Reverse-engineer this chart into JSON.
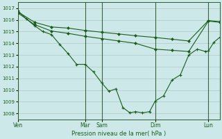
{
  "background_color": "#cce8e8",
  "grid_color": "#b0c8c8",
  "line_color": "#1a5c1a",
  "marker_color": "#1a5c1a",
  "xlabel": "Pression niveau de la mer( hPa )",
  "ylim": [
    1007.5,
    1017.5
  ],
  "yticks": [
    1008,
    1009,
    1010,
    1011,
    1012,
    1013,
    1014,
    1015,
    1016,
    1017
  ],
  "day_labels": [
    "Ven",
    "Mar",
    "Sam",
    "Dim",
    "Lun"
  ],
  "day_x": [
    0,
    96,
    120,
    196,
    272
  ],
  "total_width": 288,
  "series_flat1_x": [
    0,
    24,
    48,
    72,
    96,
    120,
    144,
    168,
    196,
    220,
    244,
    272,
    288
  ],
  "series_flat1_y": [
    1016.7,
    1015.8,
    1015.4,
    1015.3,
    1015.1,
    1014.95,
    1014.8,
    1014.65,
    1014.5,
    1014.35,
    1014.2,
    1015.95,
    1015.85
  ],
  "series_flat2_x": [
    0,
    24,
    48,
    72,
    96,
    120,
    144,
    168,
    196,
    220,
    244,
    272,
    288
  ],
  "series_flat2_y": [
    1016.6,
    1015.6,
    1015.05,
    1014.85,
    1014.6,
    1014.4,
    1014.2,
    1014.0,
    1013.5,
    1013.4,
    1013.3,
    1015.9,
    1015.8
  ],
  "series_main_x": [
    0,
    12,
    24,
    36,
    48,
    60,
    72,
    84,
    96,
    108,
    120,
    130,
    140,
    150,
    160,
    168,
    178,
    188,
    196,
    208,
    220,
    232,
    244,
    256,
    268,
    272,
    280,
    288
  ],
  "series_main_y": [
    1016.8,
    1016.1,
    1015.5,
    1015.0,
    1014.75,
    1013.9,
    1013.1,
    1012.2,
    1012.2,
    1011.55,
    1010.6,
    1009.9,
    1010.1,
    1008.5,
    1008.05,
    1008.15,
    1008.05,
    1008.15,
    1009.05,
    1009.5,
    1010.85,
    1011.3,
    1013.0,
    1013.5,
    1013.3,
    1013.35,
    1014.1,
    1014.5
  ]
}
